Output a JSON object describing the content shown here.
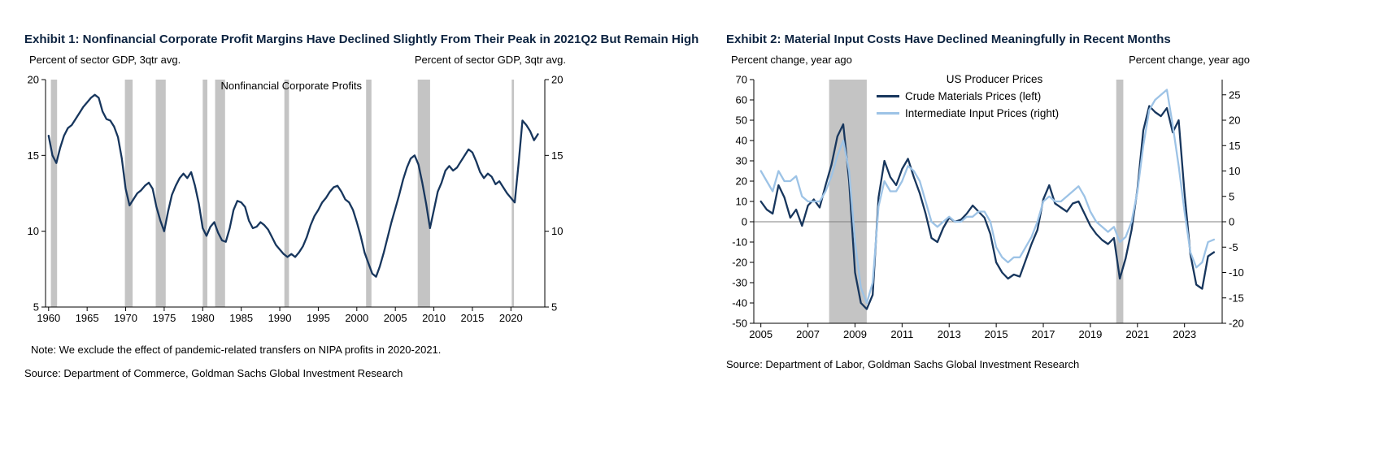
{
  "colors": {
    "navy": "#17365d",
    "light_blue": "#9dc3e6",
    "recession": "#c4c4c4",
    "zero_line": "#808080",
    "title": "#0c2340"
  },
  "exhibit1": {
    "title": "Exhibit 1: Nonfinancial Corporate Profit Margins Have Declined Slightly From Their Peak in 2021Q2 But Remain High",
    "left_axis_header": "Percent of sector GDP, 3qtr avg.",
    "right_axis_header": "Percent of sector GDP, 3qtr avg.",
    "note": "Note: We exclude the effect of pandemic-related transfers on NIPA profits in 2020-2021.",
    "source": "Source: Department of Commerce, Goldman Sachs Global Investment Research"
  },
  "exhibit2": {
    "title": "Exhibit 2: Material Input Costs Have Declined Meaningfully in Recent Months",
    "left_axis_header": "Percent change, year ago",
    "right_axis_header": "Percent change, year ago",
    "legend_title": "US Producer Prices",
    "legend": [
      "Crude Materials Prices (left)",
      "Intermediate Input Prices (right)"
    ],
    "source": "Source: Department of Labor, Goldman Sachs Global Investment Research"
  },
  "chart_data": [
    {
      "type": "line",
      "title": "Nonfinancial Corporate Profit Margins",
      "ylabel": "Percent of sector GDP, 3qtr avg.",
      "xlim": [
        1959.6,
        2024.4
      ],
      "ylim": [
        5,
        20
      ],
      "yticks": [
        5,
        10,
        15,
        20
      ],
      "xticks": [
        1960,
        1965,
        1970,
        1975,
        1980,
        1985,
        1990,
        1995,
        2000,
        2005,
        2010,
        2015,
        2020
      ],
      "recessions": [
        [
          1960.3,
          1961.1
        ],
        [
          1969.9,
          1970.9
        ],
        [
          1973.9,
          1975.2
        ],
        [
          1980.0,
          1980.6
        ],
        [
          1981.6,
          1982.9
        ],
        [
          1990.6,
          1991.2
        ],
        [
          2001.2,
          2001.9
        ],
        [
          2007.9,
          2009.5
        ],
        [
          2020.1,
          2020.4
        ]
      ],
      "annotation": {
        "text": "Nonfinancial Corporate Profits",
        "x": 1991.5,
        "y": 19.35
      },
      "series": [
        {
          "name": "Nonfinancial Corporate Profits",
          "axis": "left",
          "color_key": "navy",
          "x_start": 1960.0,
          "x_step": 0.5,
          "values": [
            16.3,
            15.0,
            14.5,
            15.5,
            16.3,
            16.8,
            17.0,
            17.4,
            17.8,
            18.2,
            18.5,
            18.8,
            19.0,
            18.8,
            17.9,
            17.4,
            17.3,
            16.9,
            16.2,
            14.8,
            12.8,
            11.7,
            12.1,
            12.5,
            12.7,
            13.0,
            13.2,
            12.8,
            11.6,
            10.7,
            10.0,
            11.3,
            12.4,
            13.0,
            13.5,
            13.8,
            13.5,
            13.9,
            13.0,
            11.8,
            10.2,
            9.7,
            10.3,
            10.6,
            9.9,
            9.4,
            9.3,
            10.2,
            11.4,
            12.0,
            11.9,
            11.6,
            10.7,
            10.2,
            10.3,
            10.6,
            10.4,
            10.1,
            9.6,
            9.1,
            8.8,
            8.5,
            8.3,
            8.5,
            8.3,
            8.6,
            9.0,
            9.6,
            10.4,
            11.0,
            11.4,
            11.9,
            12.2,
            12.6,
            12.9,
            13.0,
            12.6,
            12.1,
            11.9,
            11.4,
            10.6,
            9.7,
            8.6,
            7.9,
            7.2,
            7.0,
            7.7,
            8.6,
            9.6,
            10.6,
            11.5,
            12.4,
            13.4,
            14.2,
            14.8,
            15.0,
            14.4,
            13.2,
            11.8,
            10.2,
            11.4,
            12.6,
            13.2,
            14.0,
            14.3,
            14.0,
            14.2,
            14.6,
            15.0,
            15.4,
            15.2,
            14.6,
            13.9,
            13.5,
            13.8,
            13.6,
            13.1,
            13.3,
            12.9,
            12.5,
            12.2,
            11.9,
            14.5,
            17.3,
            17.0,
            16.6,
            16.0,
            16.4
          ]
        }
      ]
    },
    {
      "type": "line",
      "title": "US Producer Prices",
      "ylabel_left": "Percent change, year ago",
      "ylabel_right": "Percent change, year ago",
      "xlim": [
        2004.7,
        2024.6
      ],
      "ylim_left": [
        -50,
        70
      ],
      "ylim_right": [
        -20,
        28
      ],
      "yticks_left": [
        -50,
        -40,
        -30,
        -20,
        -10,
        0,
        10,
        20,
        30,
        40,
        50,
        60,
        70
      ],
      "yticks_right": [
        -20,
        -15,
        -10,
        -5,
        0,
        5,
        10,
        15,
        20,
        25
      ],
      "xticks": [
        2005,
        2007,
        2009,
        2011,
        2013,
        2015,
        2017,
        2019,
        2021,
        2023
      ],
      "zero_line": true,
      "recessions": [
        [
          2007.9,
          2009.5
        ],
        [
          2020.1,
          2020.4
        ]
      ],
      "legend_position": "top-center",
      "series": [
        {
          "name": "Crude Materials Prices (left)",
          "axis": "left",
          "color_key": "navy",
          "x_start": 2005.0,
          "x_step": 0.25,
          "values": [
            10,
            6,
            4,
            18,
            12,
            2,
            6,
            -2,
            8,
            11,
            7,
            18,
            28,
            42,
            48,
            20,
            -25,
            -40,
            -43,
            -36,
            12,
            30,
            22,
            18,
            26,
            31,
            22,
            14,
            4,
            -8,
            -10,
            -3,
            2,
            0,
            1,
            4,
            8,
            5,
            2,
            -6,
            -20,
            -25,
            -28,
            -26,
            -27,
            -19,
            -11,
            -4,
            11,
            18,
            9,
            7,
            5,
            9,
            10,
            4,
            -2,
            -6,
            -9,
            -11,
            -8,
            -28,
            -18,
            -4,
            16,
            45,
            57,
            54,
            52,
            56,
            44,
            50,
            14,
            -16,
            -31,
            -33,
            -17,
            -15
          ]
        },
        {
          "name": "Intermediate Input Prices (right)",
          "axis": "right",
          "color_key": "light_blue",
          "x_start": 2005.0,
          "x_step": 0.25,
          "values": [
            10,
            8,
            6,
            10,
            8,
            8,
            9,
            5,
            4,
            4,
            4,
            6,
            9,
            13,
            16,
            10,
            -4,
            -13,
            -16,
            -12,
            3,
            8,
            6,
            6,
            8,
            11,
            10,
            8,
            4,
            0,
            -1,
            0,
            1,
            0,
            0,
            1,
            1,
            2,
            2,
            0,
            -5,
            -7,
            -8,
            -7,
            -7,
            -5,
            -3,
            0,
            4,
            5,
            4,
            4,
            5,
            6,
            7,
            5,
            2,
            0,
            -1,
            -2,
            -1,
            -4,
            -3,
            0,
            6,
            15,
            22,
            24,
            25,
            26,
            19,
            11,
            2,
            -6,
            -9,
            -8,
            -4,
            -3.5
          ]
        }
      ]
    }
  ]
}
